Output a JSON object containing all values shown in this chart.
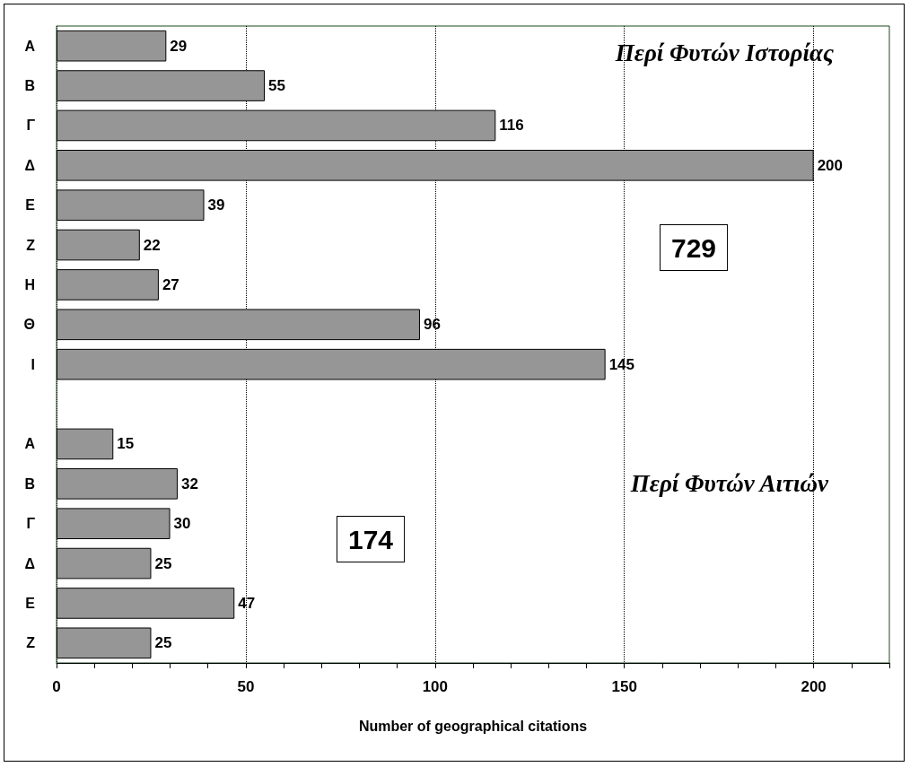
{
  "chart_data": {
    "type": "bar",
    "orientation": "horizontal",
    "xlabel": "Number of geographical citations",
    "categories": [
      "Α",
      "Β",
      "Γ",
      "Δ",
      "Ε",
      "Ζ",
      "Η",
      "Θ",
      "Ι",
      null,
      "Α",
      "Β",
      "Γ",
      "Δ",
      "Ε",
      "Ζ"
    ],
    "values": [
      29,
      55,
      116,
      200,
      39,
      22,
      27,
      96,
      145,
      null,
      15,
      32,
      30,
      25,
      47,
      25
    ],
    "color": "#969696",
    "data_labels": true,
    "xlim": [
      0,
      220
    ],
    "xticks": [
      0,
      {
        "value": 10,
        "label": null
      },
      {
        "value": 20,
        "label": null
      },
      {
        "value": 30,
        "label": null
      },
      {
        "value": 40,
        "label": null
      },
      50,
      {
        "value": 60,
        "label": null
      },
      {
        "value": 70,
        "label": null
      },
      {
        "value": 80,
        "label": null
      },
      {
        "value": 90,
        "label": null
      },
      100,
      {
        "value": 110,
        "label": null
      },
      {
        "value": 120,
        "label": null
      },
      {
        "value": 130,
        "label": null
      },
      {
        "value": 140,
        "label": null
      },
      150,
      {
        "value": 160,
        "label": null
      },
      {
        "value": 170,
        "label": null
      },
      {
        "value": 180,
        "label": null
      },
      {
        "value": 190,
        "label": null
      },
      200,
      {
        "value": 210,
        "label": null
      },
      {
        "value": 220,
        "label": null
      }
    ],
    "grid": "x",
    "line_style": "dotted",
    "annotations": [
      "Περί Φυτών Ιστορίας",
      "729",
      "Περί Φυτών Αιτιών",
      "174"
    ]
  }
}
